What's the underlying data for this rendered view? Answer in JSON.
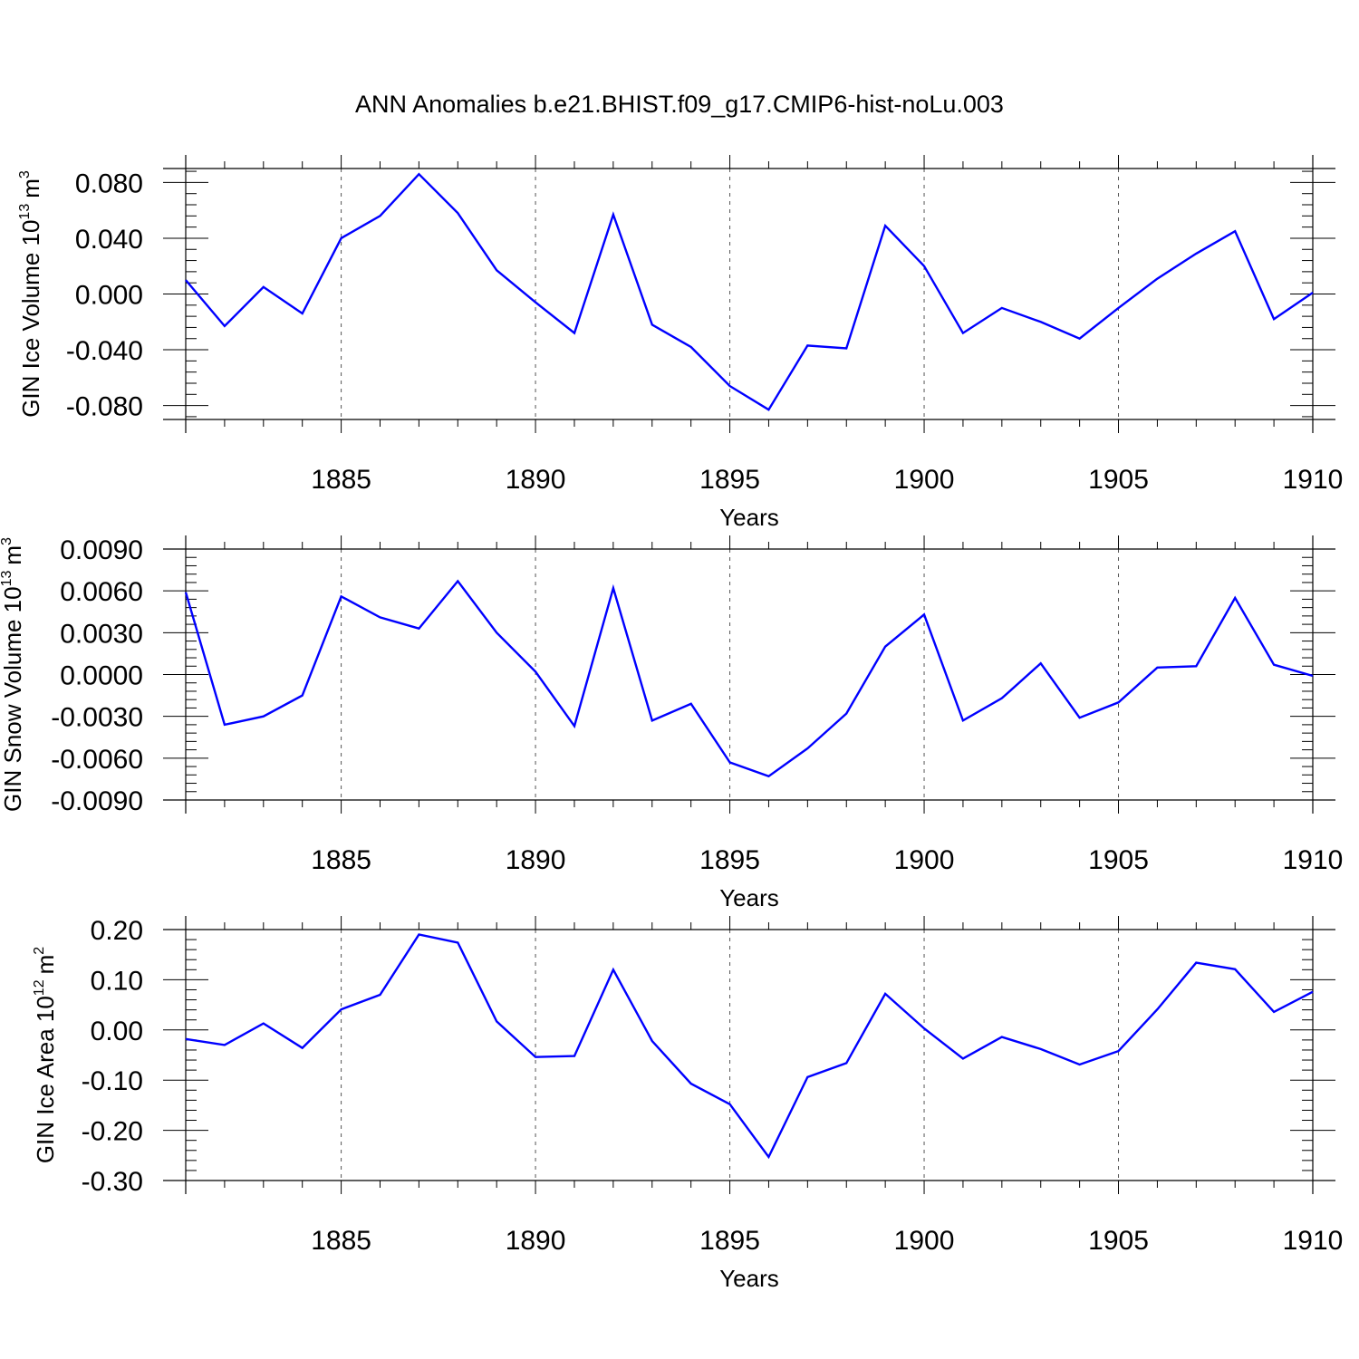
{
  "title": "ANN Anomalies b.e21.BHIST.f09_g17.CMIP6-hist-noLu.003",
  "colors": {
    "line": "#0000ff",
    "axis": "#000000",
    "grid": "#555555"
  },
  "chart_data": [
    {
      "type": "line",
      "name": "ice-volume",
      "ylabel": {
        "text": "GIN Ice Volume 10",
        "exp": "13",
        "unit": "m",
        "unit_exp": "3"
      },
      "xlabel": "Years",
      "xlim": [
        1881,
        1910
      ],
      "ylim": [
        -0.09,
        0.09
      ],
      "yticks": [
        0.08,
        0.04,
        0.0,
        -0.04,
        -0.08
      ],
      "ytick_labels": [
        "0.080",
        "0.040",
        "0.000",
        "-0.040",
        "-0.080"
      ],
      "xticks": [
        1885,
        1890,
        1895,
        1900,
        1905,
        1910
      ],
      "xtick_labels": [
        "1885",
        "1890",
        "1895",
        "1900",
        "1905",
        "1910"
      ],
      "x": [
        1881,
        1882,
        1883,
        1884,
        1885,
        1886,
        1887,
        1888,
        1889,
        1890,
        1891,
        1892,
        1893,
        1894,
        1895,
        1896,
        1897,
        1898,
        1899,
        1900,
        1901,
        1902,
        1903,
        1904,
        1905,
        1906,
        1907,
        1908,
        1909,
        1910
      ],
      "y": [
        0.01,
        -0.023,
        0.005,
        -0.014,
        0.04,
        0.056,
        0.086,
        0.058,
        0.017,
        -0.006,
        -0.028,
        0.057,
        -0.022,
        -0.038,
        -0.066,
        -0.083,
        -0.037,
        -0.039,
        0.049,
        0.02,
        -0.028,
        -0.01,
        -0.02,
        -0.032,
        -0.01,
        0.011,
        0.029,
        0.045,
        -0.018,
        0.001
      ]
    },
    {
      "type": "line",
      "name": "snow-volume",
      "ylabel": {
        "text": "GIN Snow Volume 10",
        "exp": "13",
        "unit": "m",
        "unit_exp": "3"
      },
      "xlabel": "Years",
      "xlim": [
        1881,
        1910
      ],
      "ylim": [
        -0.009,
        0.009
      ],
      "yticks": [
        0.009,
        0.006,
        0.003,
        0.0,
        -0.003,
        -0.006,
        -0.009
      ],
      "ytick_labels": [
        "0.0090",
        "0.0060",
        "0.0030",
        "0.0000",
        "-0.0030",
        "-0.0060",
        "-0.0090"
      ],
      "xticks": [
        1885,
        1890,
        1895,
        1900,
        1905,
        1910
      ],
      "xtick_labels": [
        "1885",
        "1890",
        "1895",
        "1900",
        "1905",
        "1910"
      ],
      "x": [
        1881,
        1882,
        1883,
        1884,
        1885,
        1886,
        1887,
        1888,
        1889,
        1890,
        1891,
        1892,
        1893,
        1894,
        1895,
        1896,
        1897,
        1898,
        1899,
        1900,
        1901,
        1902,
        1903,
        1904,
        1905,
        1906,
        1907,
        1908,
        1909,
        1910
      ],
      "y": [
        0.0059,
        -0.0036,
        -0.003,
        -0.0015,
        0.0056,
        0.0041,
        0.0033,
        0.0067,
        0.003,
        0.0002,
        -0.0037,
        0.0062,
        -0.0033,
        -0.0021,
        -0.0063,
        -0.0073,
        -0.0053,
        -0.0028,
        0.002,
        0.0043,
        -0.0033,
        -0.0017,
        0.0008,
        -0.0031,
        -0.002,
        0.0005,
        0.0006,
        0.0055,
        0.0007,
        -0.0001
      ]
    },
    {
      "type": "line",
      "name": "ice-area",
      "ylabel": {
        "text": "GIN Ice Area 10",
        "exp": "12",
        "unit": "m",
        "unit_exp": "2"
      },
      "xlabel": "Years",
      "xlim": [
        1881,
        1910
      ],
      "ylim": [
        -0.3,
        0.2
      ],
      "yticks": [
        0.2,
        0.1,
        0.0,
        -0.1,
        -0.2,
        -0.3
      ],
      "ytick_labels": [
        "0.20",
        "0.10",
        "0.00",
        "-0.10",
        "-0.20",
        "-0.30"
      ],
      "xticks": [
        1885,
        1890,
        1895,
        1900,
        1905,
        1910
      ],
      "xtick_labels": [
        "1885",
        "1890",
        "1895",
        "1900",
        "1905",
        "1910"
      ],
      "x": [
        1881,
        1882,
        1883,
        1884,
        1885,
        1886,
        1887,
        1888,
        1889,
        1890,
        1891,
        1892,
        1893,
        1894,
        1895,
        1896,
        1897,
        1898,
        1899,
        1900,
        1901,
        1902,
        1903,
        1904,
        1905,
        1906,
        1907,
        1908,
        1909,
        1910
      ],
      "y": [
        -0.018,
        -0.03,
        0.013,
        -0.036,
        0.041,
        0.07,
        0.19,
        0.174,
        0.017,
        -0.054,
        -0.052,
        0.12,
        -0.022,
        -0.107,
        -0.148,
        -0.253,
        -0.094,
        -0.066,
        0.072,
        0.003,
        -0.057,
        -0.014,
        -0.038,
        -0.069,
        -0.042,
        0.041,
        0.134,
        0.121,
        0.036,
        0.076
      ]
    }
  ]
}
